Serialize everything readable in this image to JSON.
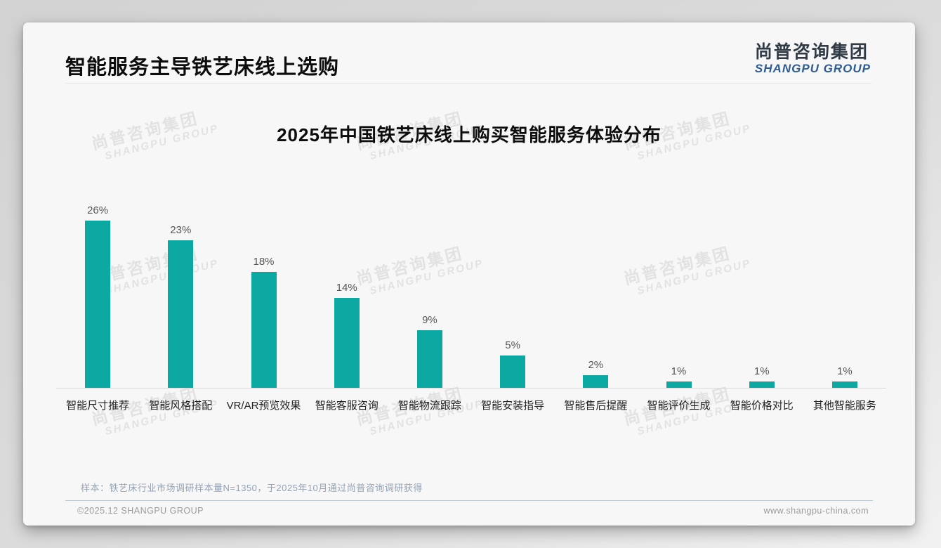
{
  "header": {
    "title": "智能服务主导铁艺床线上选购",
    "logo_cn": "尚普咨询集团",
    "logo_en": "SHANGPU GROUP"
  },
  "watermark": {
    "cn": "尚普咨询集团",
    "en": "SHANGPU GROUP"
  },
  "chart_data": {
    "type": "bar",
    "title": "2025年中国铁艺床线上购买智能服务体验分布",
    "categories": [
      "智能尺寸推荐",
      "智能风格搭配",
      "VR/AR预览效果",
      "智能客服咨询",
      "智能物流跟踪",
      "智能安装指导",
      "智能售后提醒",
      "智能评价生成",
      "智能价格对比",
      "其他智能服务"
    ],
    "values": [
      26,
      23,
      18,
      14,
      9,
      5,
      2,
      1,
      1,
      1
    ],
    "value_labels": [
      "26%",
      "23%",
      "18%",
      "14%",
      "9%",
      "5%",
      "2%",
      "1%",
      "1%",
      "1%"
    ],
    "unit": "%",
    "ylim": [
      0,
      29
    ],
    "grid": false,
    "legend": null,
    "bar_color": "#0ca9a2",
    "axis_line_color": "#d9d9d9"
  },
  "footnote": {
    "text": "样本：铁艺床行业市场调研样本量N=1350，于2025年10月通过尚普咨询调研获得"
  },
  "footer": {
    "left": "©2025.12 SHANGPU GROUP",
    "right": "www.shangpu-china.com"
  }
}
